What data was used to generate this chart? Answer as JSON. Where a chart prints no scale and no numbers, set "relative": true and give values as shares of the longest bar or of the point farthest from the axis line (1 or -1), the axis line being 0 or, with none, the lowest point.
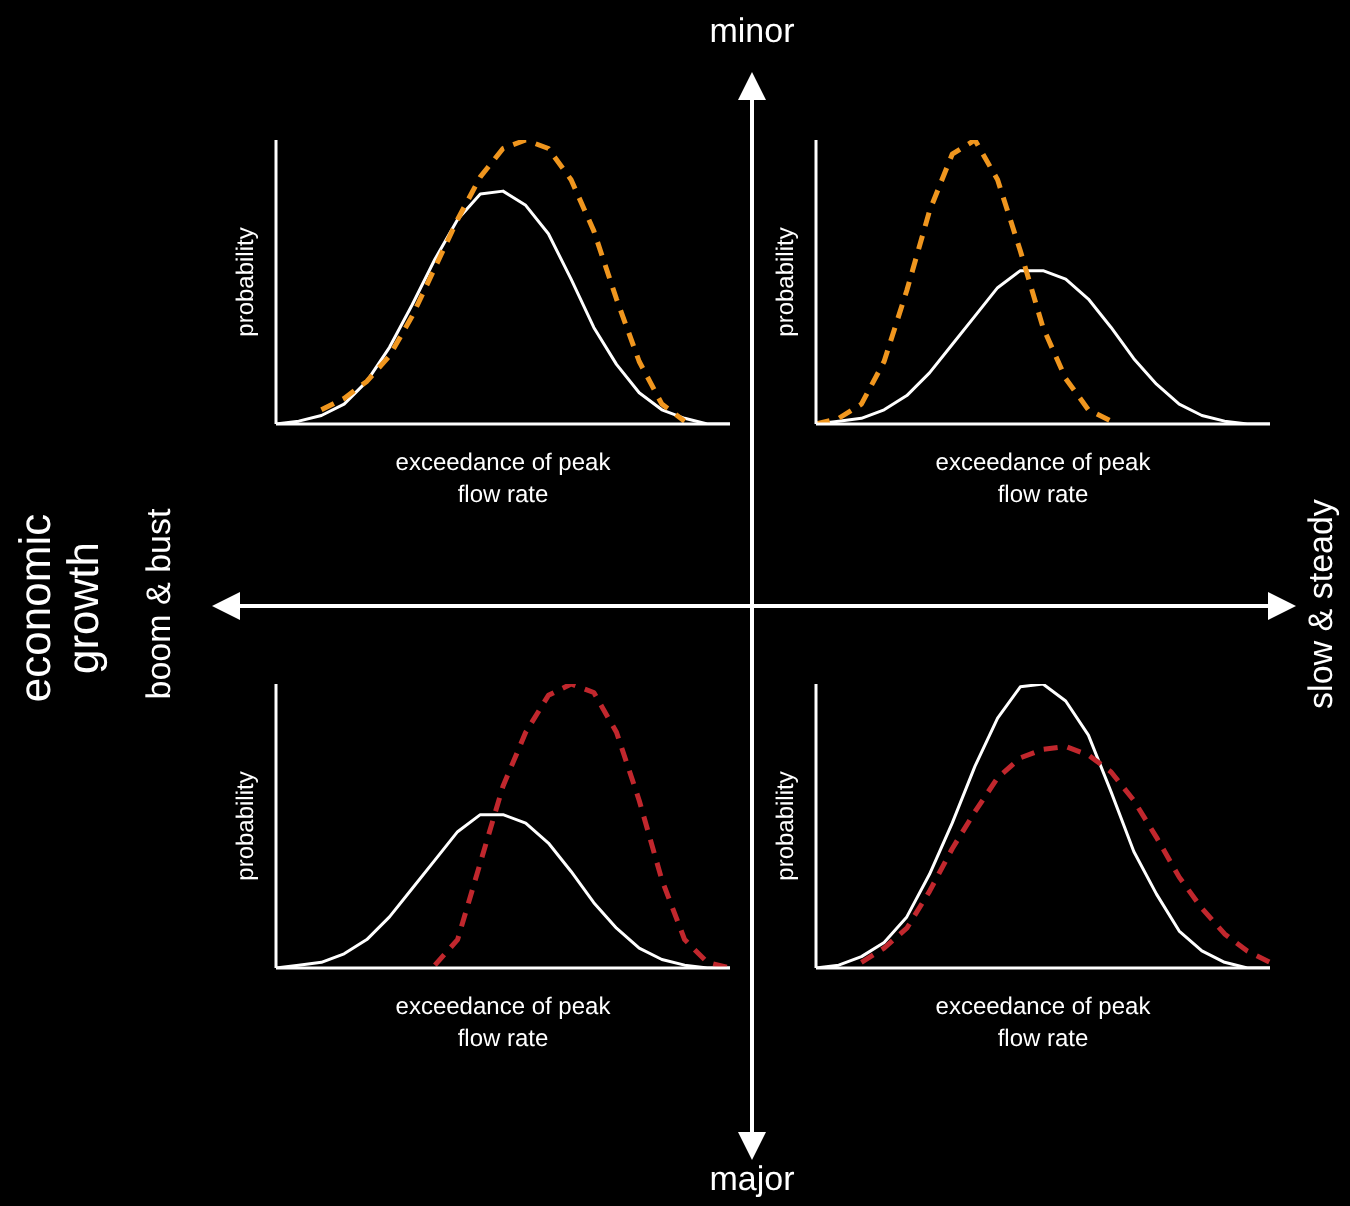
{
  "chart_data": [
    {
      "type": "line",
      "relative": true,
      "ylabel": "probability",
      "xlabel": "exceedance of peak flow rate",
      "categories": [
        null,
        null,
        null,
        null,
        null,
        null,
        null,
        null,
        null,
        null,
        null,
        null,
        null,
        null,
        null,
        null,
        null,
        null,
        null,
        null,
        null
      ],
      "annotations": [
        "minor",
        "major",
        "economic growth",
        "boom & bust",
        "slow & steady"
      ],
      "series": [
        {
          "color": "#ffffff",
          "line_style": "solid",
          "values": [
            0,
            0.01,
            0.03,
            0.07,
            0.15,
            0.27,
            0.42,
            0.58,
            0.72,
            0.81,
            0.82,
            0.77,
            0.67,
            0.51,
            0.34,
            0.21,
            0.11,
            0.05,
            0.02,
            0,
            0
          ]
        },
        {
          "color": "#f0961e",
          "line_style": "dashed",
          "values": [
            null,
            null,
            0.05,
            0.09,
            0.15,
            0.24,
            0.38,
            0.55,
            0.72,
            0.87,
            0.97,
            1,
            0.97,
            0.86,
            0.68,
            0.44,
            0.22,
            0.07,
            0.01,
            null,
            null
          ]
        }
      ]
    },
    {
      "type": "line",
      "relative": true,
      "ylabel": "probability",
      "xlabel": "exceedance of peak flow rate",
      "categories": [
        null,
        null,
        null,
        null,
        null,
        null,
        null,
        null,
        null,
        null,
        null,
        null,
        null,
        null,
        null,
        null,
        null,
        null,
        null,
        null,
        null
      ],
      "series": [
        {
          "color": "#ffffff",
          "line_style": "solid",
          "values": [
            0,
            0.01,
            0.02,
            0.05,
            0.1,
            0.18,
            0.28,
            0.38,
            0.48,
            0.54,
            0.54,
            0.51,
            0.44,
            0.34,
            0.23,
            0.14,
            0.07,
            0.03,
            0.01,
            0,
            0
          ]
        },
        {
          "color": "#f0961e",
          "line_style": "dashed",
          "values": [
            0,
            0.02,
            0.07,
            0.22,
            0.47,
            0.75,
            0.95,
            1,
            0.86,
            0.61,
            0.34,
            0.16,
            0.05,
            0.01,
            null,
            null,
            null,
            null,
            null,
            null,
            null
          ]
        }
      ]
    },
    {
      "type": "line",
      "relative": true,
      "ylabel": "probability",
      "xlabel": "exceedance of peak flow rate",
      "categories": [
        null,
        null,
        null,
        null,
        null,
        null,
        null,
        null,
        null,
        null,
        null,
        null,
        null,
        null,
        null,
        null,
        null,
        null,
        null,
        null,
        null
      ],
      "series": [
        {
          "color": "#ffffff",
          "line_style": "solid",
          "values": [
            0,
            0.01,
            0.02,
            0.05,
            0.1,
            0.18,
            0.28,
            0.38,
            0.48,
            0.54,
            0.54,
            0.51,
            0.44,
            0.34,
            0.23,
            0.14,
            0.07,
            0.03,
            0.01,
            0,
            0
          ]
        },
        {
          "color": "#c1272d",
          "line_style": "dashed",
          "values": [
            null,
            null,
            null,
            null,
            null,
            null,
            null,
            0.01,
            0.1,
            0.37,
            0.64,
            0.83,
            0.96,
            1,
            0.97,
            0.83,
            0.59,
            0.31,
            0.1,
            0.02,
            0
          ]
        }
      ]
    },
    {
      "type": "line",
      "relative": true,
      "ylabel": "probability",
      "xlabel": "exceedance of peak flow rate",
      "categories": [
        null,
        null,
        null,
        null,
        null,
        null,
        null,
        null,
        null,
        null,
        null,
        null,
        null,
        null,
        null,
        null,
        null,
        null,
        null,
        null,
        null
      ],
      "series": [
        {
          "color": "#ffffff",
          "line_style": "solid",
          "values": [
            0,
            0.01,
            0.04,
            0.09,
            0.18,
            0.33,
            0.51,
            0.71,
            0.88,
            0.99,
            1,
            0.94,
            0.82,
            0.62,
            0.41,
            0.26,
            0.13,
            0.06,
            0.02,
            0,
            0
          ]
        },
        {
          "color": "#c1272d",
          "line_style": "dashed",
          "values": [
            null,
            null,
            0.02,
            0.07,
            0.14,
            0.27,
            0.42,
            0.55,
            0.67,
            0.74,
            0.77,
            0.78,
            0.75,
            0.69,
            0.59,
            0.46,
            0.32,
            0.21,
            0.12,
            0.06,
            0.02
          ]
        }
      ]
    }
  ]
}
